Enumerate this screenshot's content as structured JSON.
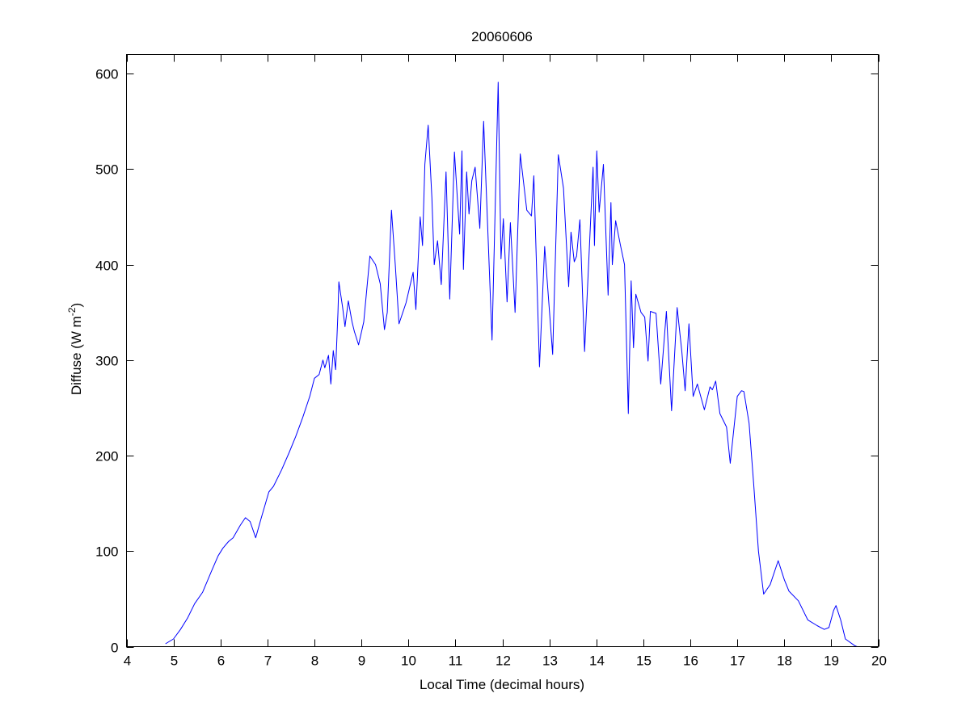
{
  "chart_data": {
    "type": "line",
    "title": "20060606",
    "xlabel": "Local Time (decimal hours)",
    "ylabel": {
      "main": "Diffuse (W m",
      "superscript": "-2",
      "close": ")"
    },
    "xlim": [
      4,
      20
    ],
    "ylim": [
      0,
      620
    ],
    "xticks": [
      4,
      5,
      6,
      7,
      8,
      9,
      10,
      11,
      12,
      13,
      14,
      15,
      16,
      17,
      18,
      19,
      20
    ],
    "yticks": [
      0,
      100,
      200,
      300,
      400,
      500,
      600
    ],
    "grid": false,
    "line_color": "#0000ff",
    "series": [
      {
        "name": "Diffuse",
        "x": [
          4.83,
          5.0,
          5.15,
          5.3,
          5.45,
          5.62,
          5.8,
          5.95,
          6.05,
          6.17,
          6.27,
          6.42,
          6.53,
          6.63,
          6.75,
          6.87,
          7.03,
          7.13,
          7.3,
          7.46,
          7.6,
          7.75,
          7.9,
          8.0,
          8.1,
          8.18,
          8.22,
          8.3,
          8.35,
          8.4,
          8.45,
          8.5,
          8.52,
          8.6,
          8.65,
          8.72,
          8.8,
          8.85,
          8.94,
          9.05,
          9.18,
          9.3,
          9.4,
          9.49,
          9.55,
          9.64,
          9.72,
          9.8,
          9.95,
          10.1,
          10.16,
          10.25,
          10.3,
          10.35,
          10.42,
          10.5,
          10.55,
          10.62,
          10.7,
          10.8,
          10.88,
          10.98,
          11.09,
          11.14,
          11.17,
          11.24,
          11.29,
          11.35,
          11.42,
          11.52,
          11.6,
          11.78,
          11.91,
          11.97,
          12.02,
          12.1,
          12.17,
          12.27,
          12.38,
          12.52,
          12.62,
          12.67,
          12.79,
          12.9,
          13.07,
          13.19,
          13.3,
          13.41,
          13.46,
          13.53,
          13.58,
          13.65,
          13.75,
          13.93,
          13.96,
          14.01,
          14.06,
          14.15,
          14.25,
          14.31,
          14.34,
          14.41,
          14.51,
          14.6,
          14.68,
          14.74,
          14.79,
          14.84,
          14.95,
          15.03,
          15.1,
          15.15,
          15.27,
          15.37,
          15.49,
          15.6,
          15.72,
          15.82,
          15.89,
          15.97,
          16.06,
          16.15,
          16.3,
          16.42,
          16.47,
          16.54,
          16.63,
          16.77,
          16.85,
          17.0,
          17.09,
          17.14,
          17.25,
          17.35,
          17.45,
          17.56,
          17.7,
          17.87,
          18.0,
          18.1,
          18.3,
          18.5,
          18.7,
          18.85,
          18.95,
          19.05,
          19.1,
          19.2,
          19.3,
          19.5,
          19.55
        ],
        "y": [
          3,
          8,
          18,
          30,
          45,
          57,
          78,
          95,
          103,
          110,
          114,
          127,
          135,
          131,
          114,
          135,
          162,
          168,
          185,
          203,
          220,
          240,
          262,
          281,
          285,
          300,
          292,
          305,
          275,
          310,
          290,
          350,
          382,
          355,
          335,
          362,
          340,
          330,
          316,
          340,
          409,
          400,
          380,
          332,
          350,
          457,
          400,
          338,
          360,
          392,
          353,
          450,
          420,
          505,
          546,
          470,
          400,
          425,
          379,
          497,
          364,
          518,
          432,
          519,
          395,
          497,
          453,
          488,
          502,
          438,
          550,
          321,
          591,
          406,
          448,
          361,
          444,
          350,
          516,
          457,
          451,
          493,
          293,
          419,
          306,
          515,
          480,
          377,
          434,
          403,
          409,
          447,
          309,
          502,
          420,
          519,
          455,
          505,
          368,
          465,
          400,
          446,
          421,
          400,
          244,
          383,
          313,
          369,
          350,
          345,
          299,
          351,
          349,
          275,
          351,
          247,
          355,
          309,
          268,
          338,
          262,
          275,
          248,
          272,
          269,
          278,
          244,
          230,
          192,
          262,
          268,
          267,
          234,
          169,
          100,
          55,
          65,
          90,
          70,
          58,
          48,
          28,
          22,
          18,
          20,
          38,
          43,
          28,
          8,
          1,
          0
        ]
      }
    ]
  }
}
